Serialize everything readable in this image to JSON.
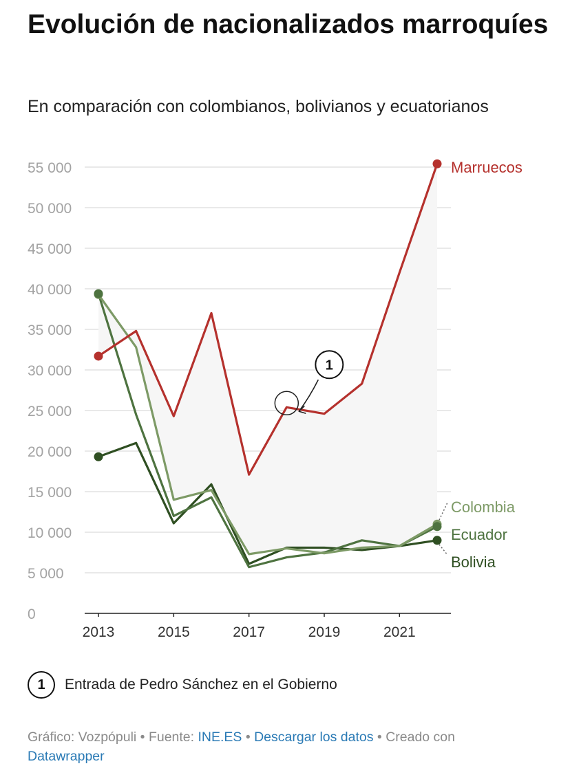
{
  "header": {
    "title": "Evolución de nacionalizados marroquíes",
    "subtitle": "En comparación con colombianos, bolivianos y ecuatorianos"
  },
  "chart_data": {
    "type": "line",
    "title": "Evolución de nacionalizados marroquíes",
    "subtitle": "En comparación con colombianos, bolivianos y ecuatorianos",
    "x": [
      2013,
      2014,
      2015,
      2016,
      2017,
      2018,
      2019,
      2020,
      2021,
      2022
    ],
    "x_ticks": [
      "2013",
      "2015",
      "2017",
      "2019",
      "2021"
    ],
    "y_ticks": [
      "0",
      "5 000",
      "10 000",
      "15 000",
      "20 000",
      "25 000",
      "30 000",
      "35 000",
      "40 000",
      "45 000",
      "50 000",
      "55 000"
    ],
    "ylim": [
      0,
      55000
    ],
    "grid": true,
    "series": [
      {
        "name": "Marruecos",
        "color": "#b5312d",
        "values": [
          31700,
          34800,
          24300,
          37000,
          17100,
          25400,
          24600,
          28300,
          42000,
          55400
        ]
      },
      {
        "name": "Colombia",
        "color": "#7d9a66",
        "values": [
          39300,
          32800,
          14000,
          15200,
          7300,
          8000,
          7400,
          8100,
          8300,
          11000
        ]
      },
      {
        "name": "Ecuador",
        "color": "#4e7340",
        "values": [
          39400,
          24500,
          12000,
          14300,
          5700,
          6900,
          7500,
          9000,
          8300,
          10700
        ]
      },
      {
        "name": "Bolivia",
        "color": "#2f4f22",
        "values": [
          19300,
          21000,
          11100,
          15900,
          6100,
          8100,
          8100,
          7800,
          8300,
          9000
        ]
      }
    ],
    "shaded_band": {
      "between": [
        "Marruecos",
        "Colombia"
      ],
      "color": "#f6f6f6"
    },
    "annotations": [
      {
        "marker": "1",
        "x": 2018,
        "y": 25400,
        "text": "Entrada de Pedro Sánchez en el Gobierno"
      }
    ]
  },
  "note": {
    "marker": "1",
    "text": "Entrada de Pedro Sánchez en el Gobierno"
  },
  "footer": {
    "graphic_label": "Gráfico: Vozpópuli",
    "separator": " • ",
    "source_label": "Fuente: ",
    "source_link": "INE.ES",
    "download_link": "Descargar los datos",
    "created_with": "Creado con",
    "tool_link": "Datawrapper",
    "link_color": "#2a7ab5"
  }
}
